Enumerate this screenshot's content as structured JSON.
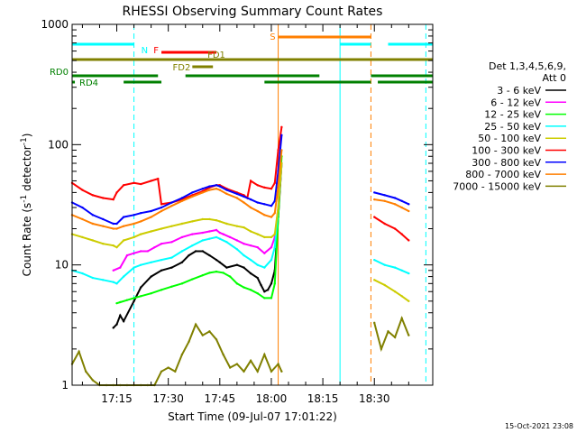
{
  "chart_data": {
    "type": "line",
    "title": "RHESSI Observing Summary Count Rates",
    "xlabel": "Start Time (09-Jul-07 17:01:22)",
    "ylabel_main": "Count Rate (s",
    "ylabel_sup1": "-1",
    "ylabel_mid": " detector",
    "ylabel_sup2": "-1",
    "ylabel_end": ")",
    "yscale": "log",
    "ylim": [
      1,
      1000
    ],
    "xlim_min": [
      2.0,
      107.0
    ],
    "xticks": [
      {
        "v": 15,
        "label": "17:15"
      },
      {
        "v": 30,
        "label": "17:30"
      },
      {
        "v": 45,
        "label": "17:45"
      },
      {
        "v": 60,
        "label": "18:00"
      },
      {
        "v": 75,
        "label": "18:15"
      },
      {
        "v": 90,
        "label": "18:30"
      }
    ],
    "yticks": [
      {
        "v": 1,
        "label": "1"
      },
      {
        "v": 10,
        "label": "10"
      },
      {
        "v": 100,
        "label": "100"
      },
      {
        "v": 1000,
        "label": "1000"
      }
    ],
    "legend_header": [
      "Det 1,3,4,5,6,9,",
      "Att 0"
    ],
    "series": [
      {
        "name": "3 - 6 keV",
        "color": "#000000",
        "x": [
          14,
          15,
          16,
          17,
          20,
          22,
          25,
          28,
          31,
          34,
          36,
          38,
          40,
          42,
          44,
          45,
          47,
          50,
          52,
          54,
          56,
          57,
          58,
          59,
          60,
          61,
          62,
          63
        ],
        "y": [
          3.0,
          3.2,
          3.8,
          3.4,
          5.0,
          6.5,
          8.0,
          9.0,
          9.5,
          10.5,
          12,
          13,
          13,
          12,
          11,
          10.5,
          9.5,
          10,
          9.5,
          8.5,
          7.8,
          6.8,
          6.0,
          6.2,
          7.0,
          9.0,
          25,
          70
        ]
      },
      {
        "name": "6 - 12 keV",
        "color": "#ff00ff",
        "x": [
          14,
          16,
          18,
          20,
          22,
          24,
          26,
          28,
          31,
          34,
          37,
          40,
          42,
          44,
          45,
          46,
          48,
          50,
          52,
          54,
          56,
          58,
          60,
          61,
          62,
          63
        ],
        "y": [
          9.0,
          9.5,
          12,
          12.5,
          13,
          13,
          14,
          15,
          15.5,
          17,
          18,
          18.5,
          19,
          19.5,
          18.5,
          18,
          17,
          16,
          15,
          14.5,
          14,
          12.5,
          14,
          17,
          30,
          70
        ]
      },
      {
        "name": "12 - 25 keV",
        "color": "#00ff00",
        "x": [
          15,
          16,
          18,
          20,
          22,
          25,
          28,
          31,
          34,
          37,
          40,
          42,
          44,
          46,
          48,
          50,
          52,
          54,
          56,
          58,
          60,
          61,
          62,
          63
        ],
        "y": [
          4.8,
          4.9,
          5.1,
          5.3,
          5.5,
          5.8,
          6.2,
          6.6,
          7.0,
          7.6,
          8.2,
          8.6,
          8.8,
          8.6,
          8.0,
          7.0,
          6.5,
          6.2,
          5.8,
          5.3,
          5.3,
          7.0,
          25,
          80
        ]
      },
      {
        "name": "25 - 50 keV",
        "color": "#00ffff",
        "x": [
          2,
          5,
          8,
          11,
          14,
          15,
          17,
          20,
          22,
          25,
          28,
          31,
          34,
          37,
          40,
          42,
          44,
          45,
          47,
          50,
          52,
          54,
          56,
          58,
          60,
          61,
          62,
          63,
          90,
          93,
          96,
          98,
          100
        ],
        "y": [
          9.0,
          8.5,
          7.8,
          7.5,
          7.2,
          7.0,
          8.0,
          9.5,
          10,
          10.5,
          11,
          11.5,
          13,
          14.5,
          16,
          16.5,
          17,
          16.5,
          15.5,
          13.5,
          12,
          11,
          10,
          9.5,
          11,
          14,
          30,
          70,
          11,
          10,
          9.5,
          9.0,
          8.5
        ]
      },
      {
        "name": "50 - 100 keV",
        "color": "#cccc00",
        "x": [
          2,
          5,
          8,
          11,
          14,
          15,
          17,
          20,
          22,
          25,
          28,
          31,
          34,
          37,
          40,
          42,
          44,
          45,
          47,
          50,
          52,
          54,
          56,
          58,
          60,
          61,
          62,
          63,
          90,
          93,
          96,
          98,
          100
        ],
        "y": [
          18,
          17,
          16,
          15,
          14.5,
          14,
          16,
          17,
          18,
          19,
          20,
          21,
          22,
          23,
          24,
          24,
          23.5,
          23,
          22,
          21,
          20.5,
          19,
          18,
          17,
          17,
          18,
          30,
          70,
          7.5,
          6.8,
          6.0,
          5.5,
          5.0
        ]
      },
      {
        "name": "100 - 300 keV",
        "color": "#ff0000",
        "x": [
          2,
          5,
          8,
          11,
          14,
          15,
          17,
          20,
          22,
          25,
          27,
          28,
          31,
          34,
          37,
          40,
          42,
          44,
          45,
          47,
          50,
          52,
          53,
          54,
          56,
          58,
          60,
          61,
          62,
          63,
          90,
          93,
          96,
          98,
          100
        ],
        "y": [
          48,
          42,
          38,
          36,
          35,
          40,
          46,
          48,
          47,
          50,
          52,
          32,
          33,
          35,
          38,
          41,
          44,
          46,
          46,
          43,
          40,
          38,
          36,
          50,
          46,
          44,
          43,
          48,
          90,
          140,
          25,
          22,
          20,
          18,
          16
        ]
      },
      {
        "name": "300 - 800 keV",
        "color": "#0000ff",
        "x": [
          2,
          5,
          8,
          11,
          14,
          15,
          17,
          20,
          22,
          25,
          28,
          31,
          34,
          37,
          40,
          42,
          44,
          45,
          47,
          50,
          52,
          54,
          56,
          58,
          60,
          61,
          62,
          63,
          90,
          93,
          96,
          98,
          100
        ],
        "y": [
          33,
          30,
          26,
          24,
          22,
          22,
          25,
          26,
          27,
          28,
          30,
          33,
          36,
          40,
          43,
          45,
          46,
          45,
          42,
          39,
          37,
          35,
          33,
          32,
          31,
          34,
          60,
          120,
          40,
          38,
          36,
          34,
          32
        ]
      },
      {
        "name": "800 - 7000 keV",
        "color": "#ff7f00",
        "x": [
          2,
          5,
          8,
          11,
          14,
          15,
          17,
          20,
          22,
          25,
          28,
          31,
          34,
          37,
          40,
          42,
          44,
          45,
          47,
          50,
          52,
          54,
          56,
          58,
          60,
          61,
          62,
          63,
          90,
          93,
          96,
          98,
          100
        ],
        "y": [
          26,
          24,
          22,
          21,
          20,
          20,
          21,
          22,
          23,
          25,
          28,
          31,
          34,
          37,
          40,
          42,
          43,
          42,
          39,
          36,
          33,
          30,
          28,
          26,
          25,
          27,
          45,
          90,
          35,
          34,
          32,
          30,
          28
        ]
      },
      {
        "name": "7000 - 15000 keV",
        "color": "#808000",
        "x": [
          2,
          4,
          6,
          8,
          10,
          12,
          14,
          16,
          18,
          20,
          22,
          24,
          26,
          28,
          30,
          32,
          34,
          36,
          38,
          40,
          42,
          44,
          46,
          48,
          50,
          52,
          54,
          56,
          58,
          60,
          62,
          63,
          90,
          92,
          94,
          96,
          98,
          100
        ],
        "y": [
          1.5,
          1.9,
          1.3,
          1.1,
          1.0,
          1.0,
          1.0,
          1.0,
          1.0,
          1.0,
          1.0,
          1.0,
          1.0,
          1.3,
          1.4,
          1.3,
          1.8,
          2.3,
          3.2,
          2.6,
          2.8,
          2.4,
          1.8,
          1.4,
          1.5,
          1.3,
          1.6,
          1.3,
          1.8,
          1.3,
          1.5,
          1.3,
          3.3,
          2.0,
          2.8,
          2.5,
          3.6,
          2.6
        ]
      }
    ],
    "flags": [
      {
        "label": "N",
        "color": "#00ffff",
        "level": 1,
        "segments": [
          [
            2,
            20
          ],
          [
            80,
            89
          ],
          [
            94,
            107
          ]
        ]
      },
      {
        "label": "S",
        "color": "#ff7f00",
        "level": 0,
        "segments": [
          [
            62,
            80
          ],
          [
            80,
            89
          ]
        ]
      },
      {
        "label": "F",
        "color": "#ff0000",
        "level": 2,
        "segments": [
          [
            28,
            44
          ]
        ]
      },
      {
        "label": "FD1",
        "color": "#808000",
        "level": 3,
        "segments": [
          [
            2,
            107
          ]
        ]
      },
      {
        "label": "FD2",
        "color": "#808000",
        "level": 4,
        "segments": [
          [
            37,
            43
          ]
        ]
      },
      {
        "label": "RD0",
        "color": "#008000",
        "level": 5,
        "segments": [
          [
            2,
            27
          ],
          [
            35,
            74
          ],
          [
            89,
            107
          ]
        ]
      },
      {
        "label": "RD4",
        "color": "#008000",
        "level": 6,
        "segments": [
          [
            2,
            2.8
          ],
          [
            17,
            28
          ],
          [
            58,
            89
          ],
          [
            91,
            107
          ]
        ]
      }
    ],
    "gaps": [
      {
        "type": "dashed",
        "color": "#00ffff",
        "x": 20
      },
      {
        "type": "solid",
        "color": "#ff7f00",
        "x": 62
      },
      {
        "type": "solid",
        "color": "#00ffff",
        "x": 80
      },
      {
        "type": "dashed",
        "color": "#ff7f00",
        "x": 89
      },
      {
        "type": "dashed",
        "color": "#00ffff",
        "x": 105
      }
    ],
    "data_gap": [
      64,
      88
    ],
    "timestamp": "15-Oct-2021 23:08"
  }
}
